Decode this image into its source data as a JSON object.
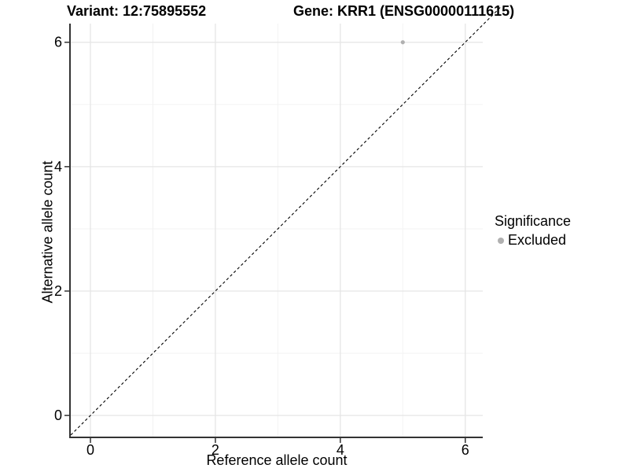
{
  "chart_data": {
    "type": "scatter",
    "title_left": "Variant: 12:75895552",
    "title_right": "Gene: KRR1 (ENSG00000111615)",
    "xlabel": "Reference allele count",
    "ylabel": "Alternative allele count",
    "xlim": [
      -0.315,
      6.28
    ],
    "ylim": [
      -0.34,
      6.3
    ],
    "x_major_ticks": [
      0,
      2,
      4,
      6
    ],
    "y_major_ticks": [
      0,
      2,
      4,
      6
    ],
    "x_minor_ticks": [
      1,
      3,
      5
    ],
    "y_minor_ticks": [
      1,
      3,
      5
    ],
    "grid": true,
    "identity_line": {
      "slope": 1,
      "intercept": 0,
      "style": "dashed",
      "color": "#000000"
    },
    "series": [
      {
        "name": "Excluded",
        "color": "#b0b0b0",
        "points": [
          [
            5,
            6
          ]
        ]
      }
    ],
    "legend": {
      "title": "Significance",
      "position": "right",
      "entries": [
        {
          "label": "Excluded",
          "color": "#b0b0b0"
        }
      ]
    }
  },
  "colors": {
    "background": "#ffffff",
    "grid_major": "#e5e5e5",
    "grid_minor": "#f2f2f2",
    "axis_line": "#333333",
    "tick_text": "#000000",
    "point": "#b0b0b0",
    "dash_line": "#000000"
  }
}
